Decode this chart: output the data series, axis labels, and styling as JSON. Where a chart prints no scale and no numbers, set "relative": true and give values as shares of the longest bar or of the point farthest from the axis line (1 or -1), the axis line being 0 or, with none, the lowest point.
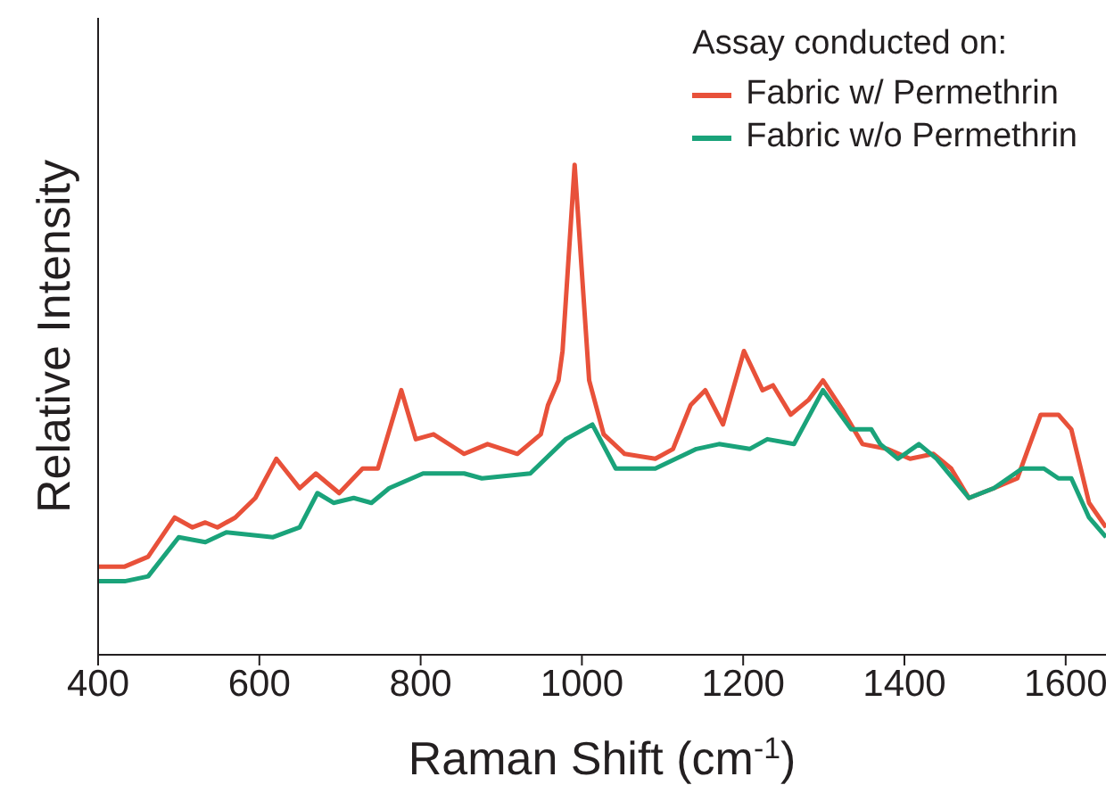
{
  "chart_data": {
    "type": "line",
    "relative": true,
    "xlabel": "Raman Shift (cm$^{-1}$)",
    "ylabel": "Relative Intensity",
    "legend_title": "Assay conducted on:",
    "legend": "top right",
    "grid": false,
    "marker": "none",
    "line_style": "solid",
    "xlim": [
      400,
      1650
    ],
    "xticks": [
      400,
      600,
      800,
      1000,
      1200,
      1400,
      1600
    ],
    "series": [
      {
        "name": "Fabric w/ Permethrin",
        "color": "#e8513a",
        "x": [
          400,
          433,
          462,
          495,
          517,
          533,
          548,
          570,
          595,
          621,
          650,
          670,
          699,
          728,
          747,
          776,
          794,
          816,
          854,
          883,
          920,
          949,
          958,
          971,
          976,
          991,
          1009,
          1027,
          1053,
          1091,
          1113,
          1135,
          1153,
          1175,
          1201,
          1224,
          1237,
          1259,
          1281,
          1299,
          1323,
          1348,
          1379,
          1407,
          1436,
          1458,
          1480,
          1511,
          1540,
          1569,
          1591,
          1607,
          1629,
          1650
        ],
        "values": [
          0.18,
          0.18,
          0.2,
          0.28,
          0.26,
          0.27,
          0.26,
          0.28,
          0.32,
          0.4,
          0.34,
          0.37,
          0.33,
          0.38,
          0.38,
          0.54,
          0.44,
          0.45,
          0.41,
          0.43,
          0.41,
          0.45,
          0.51,
          0.56,
          0.62,
          1.0,
          0.56,
          0.45,
          0.41,
          0.4,
          0.42,
          0.51,
          0.54,
          0.47,
          0.62,
          0.54,
          0.55,
          0.49,
          0.52,
          0.56,
          0.5,
          0.43,
          0.42,
          0.4,
          0.41,
          0.38,
          0.32,
          0.34,
          0.36,
          0.49,
          0.49,
          0.46,
          0.31,
          0.26
        ]
      },
      {
        "name": "Fabric w/o Permethrin",
        "color": "#1aa37a",
        "x": [
          400,
          433,
          462,
          500,
          533,
          559,
          617,
          650,
          672,
          692,
          717,
          739,
          761,
          803,
          854,
          876,
          936,
          980,
          1013,
          1042,
          1091,
          1142,
          1170,
          1208,
          1230,
          1263,
          1299,
          1334,
          1359,
          1370,
          1392,
          1418,
          1440,
          1480,
          1511,
          1546,
          1573,
          1591,
          1607,
          1629,
          1650
        ],
        "values": [
          0.15,
          0.15,
          0.16,
          0.24,
          0.23,
          0.25,
          0.24,
          0.26,
          0.33,
          0.31,
          0.32,
          0.31,
          0.34,
          0.37,
          0.37,
          0.36,
          0.37,
          0.44,
          0.47,
          0.38,
          0.38,
          0.42,
          0.43,
          0.42,
          0.44,
          0.43,
          0.54,
          0.46,
          0.46,
          0.43,
          0.4,
          0.43,
          0.4,
          0.32,
          0.34,
          0.38,
          0.38,
          0.36,
          0.36,
          0.28,
          0.24
        ]
      }
    ]
  }
}
